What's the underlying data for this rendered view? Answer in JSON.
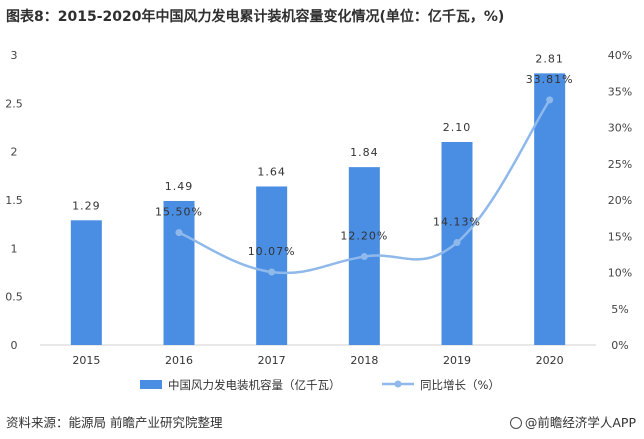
{
  "chart_data": {
    "type": "bar",
    "title": "图表8：2015-2020年中国风力发电累计装机容量变化情况(单位：亿千瓦，%)",
    "categories": [
      "2015",
      "2016",
      "2017",
      "2018",
      "2019",
      "2020"
    ],
    "series": [
      {
        "name": "中国风力发电装机容量（亿千瓦）",
        "type": "bar",
        "axis": "left",
        "color": "#4a8ee4",
        "values": [
          1.29,
          1.49,
          1.64,
          1.84,
          2.1,
          2.81
        ],
        "labels": [
          "1.29",
          "1.49",
          "1.64",
          "1.84",
          "2.10",
          "2.81"
        ]
      },
      {
        "name": "同比增长（%）",
        "type": "line",
        "axis": "right",
        "color": "#8fb9ea",
        "values": [
          15.5,
          10.07,
          12.2,
          14.13,
          33.81
        ],
        "labels": [
          "15.50%",
          "10.07%",
          "12.20%",
          "14.13%",
          "33.81%"
        ],
        "x": [
          "2016",
          "2017",
          "2018",
          "2019",
          "2020"
        ]
      }
    ],
    "y_left": {
      "min": 0,
      "max": 3,
      "ticks": [
        "0",
        "0.5",
        "1",
        "1.5",
        "2",
        "2.5",
        "3"
      ]
    },
    "y_right": {
      "min": 0,
      "max": 40,
      "ticks": [
        "0%",
        "5%",
        "10%",
        "15%",
        "20%",
        "25%",
        "30%",
        "35%",
        "40%"
      ]
    },
    "grid": false,
    "legend_position": "bottom"
  },
  "footer": {
    "source": "资料来源：能源局 前瞻产业研究院整理",
    "brand": "@前瞻经济学人APP"
  }
}
